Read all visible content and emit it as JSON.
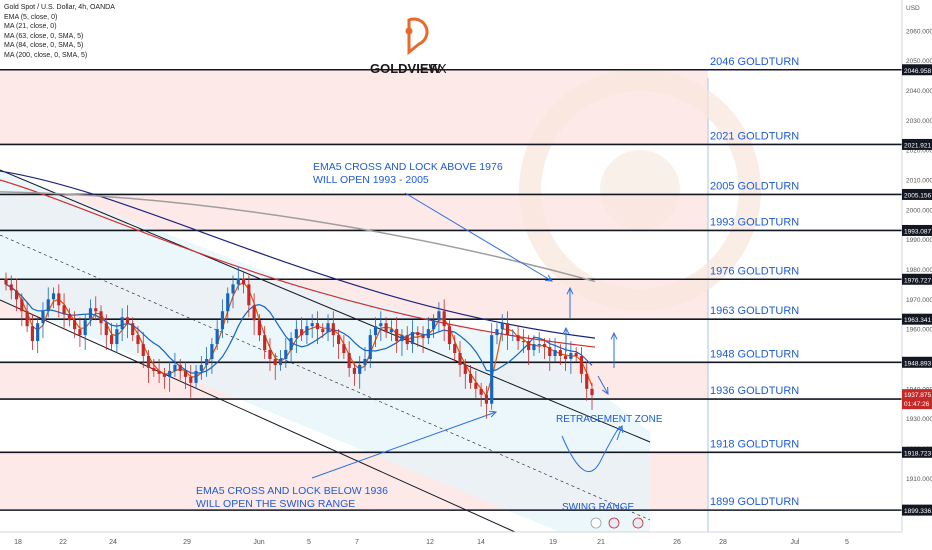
{
  "header": {
    "symbol": "Gold Spot / U.S. Dollar, 4h, OANDA",
    "indicators": [
      "EMA (5, close, 0)",
      "MA (21, close, 0)",
      "MA (63, close, 0, SMA, 5)",
      "MA (84, close, 0, SMA, 5)",
      "MA (200, close, 0, SMA, 5)"
    ],
    "currency": "USD"
  },
  "brand": {
    "name": "GOLDVIEW",
    "suffix": "FX",
    "color": "#e8692a"
  },
  "colors": {
    "level_line": "#131722",
    "label_text": "#1e5bd8",
    "bull_candle": "#1565c0",
    "bear_candle": "#c62828",
    "resistance_zone": "#fde2e2",
    "channel_zone": "#e3f4f8",
    "ema5": "#e65100",
    "ma21": "#1565c0",
    "ma63": "#d32f2f",
    "ma84": "#1a237e",
    "ma200": "#9e9e9e"
  },
  "annotations": {
    "ema_above": [
      "EMA5 CROSS AND LOCK ABOVE 1976",
      "WILL OPEN 1993 - 2005"
    ],
    "ema_below": [
      "EMA5 CROSS AND LOCK BELOW 1936",
      "WILL OPEN THE SWING RANGE"
    ],
    "retracement": "RETRACEMENT ZONE",
    "swing": "SWING RANGE"
  },
  "chart_data": {
    "type": "candlestick",
    "title": "Gold Spot / U.S. Dollar, 4h, OANDA",
    "y_axis": {
      "unit": "USD",
      "range": [
        1892,
        2069
      ],
      "ticks": [
        2060,
        2050,
        2040,
        2030,
        2020,
        2010,
        2000,
        1990,
        1980,
        1970,
        1960,
        1950,
        1940,
        1930,
        1920,
        1910,
        1900
      ]
    },
    "x_axis": {
      "ticks": [
        "18",
        "22",
        "24",
        "29",
        "Jun",
        "5",
        "7",
        "12",
        "14",
        "19",
        "21",
        "26",
        "28",
        "Jul",
        "5"
      ]
    },
    "levels": [
      {
        "value": 2046.958,
        "label": "2046 GOLDTURN"
      },
      {
        "value": 2021.921,
        "label": "2021 GOLDTURN"
      },
      {
        "value": 2005.156,
        "label": "2005 GOLDTURN"
      },
      {
        "value": 1993.087,
        "label": "1993 GOLDTURN"
      },
      {
        "value": 1976.727,
        "label": "1976 GOLDTURN"
      },
      {
        "value": 1963.341,
        "label": "1963 GOLDTURN"
      },
      {
        "value": 1948.893,
        "label": "1948 GOLDTURN"
      },
      {
        "value": 1936.57,
        "label": "1936 GOLDTURN"
      },
      {
        "value": 1918.723,
        "label": "1918 GOLDTURN"
      },
      {
        "value": 1899.336,
        "label": "1899 GOLDTURN"
      }
    ],
    "level_price_labels": [
      "2046.958",
      "2021.921",
      "2005.156",
      "1993.087",
      "1976.727",
      "1963.341",
      "1948.893",
      "1936.570",
      "1918.723",
      "1899.336"
    ],
    "current_price": {
      "value": 1937.875,
      "label": "1937.875",
      "countdown": "01:47:26"
    },
    "closes": [
      1975,
      1973,
      1970,
      1966,
      1961,
      1956,
      1962,
      1966,
      1970,
      1972,
      1968,
      1965,
      1963,
      1960,
      1958,
      1963,
      1967,
      1966,
      1962,
      1958,
      1955,
      1960,
      1964,
      1962,
      1958,
      1955,
      1951,
      1947,
      1946,
      1945,
      1944,
      1946,
      1948,
      1946,
      1944,
      1942,
      1946,
      1948,
      1950,
      1955,
      1960,
      1966,
      1972,
      1975,
      1977,
      1975,
      1968,
      1963,
      1958,
      1953,
      1950,
      1948,
      1950,
      1953,
      1957,
      1960,
      1958,
      1961,
      1962,
      1960,
      1959,
      1962,
      1958,
      1955,
      1952,
      1947,
      1945,
      1948,
      1950,
      1958,
      1961,
      1962,
      1959,
      1960,
      1956,
      1958,
      1955,
      1959,
      1958,
      1957,
      1960,
      1963,
      1966,
      1961,
      1955,
      1952,
      1948,
      1945,
      1942,
      1940,
      1938,
      1935,
      1958,
      1960,
      1962,
      1958,
      1958,
      1956,
      1956,
      1953,
      1955,
      1955,
      1954,
      1951,
      1953,
      1951,
      1950,
      1952,
      1951,
      1945,
      1940,
      1937.9
    ]
  }
}
